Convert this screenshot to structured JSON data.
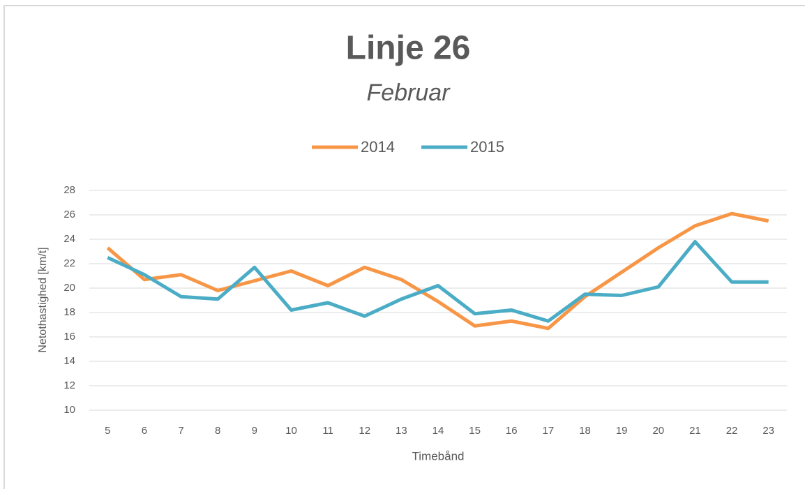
{
  "chart_data": {
    "type": "line",
    "title": "Linje 26",
    "subtitle": "Februar",
    "x_label": "Timebånd",
    "y_label": "Netothastighed [km/t]",
    "categories": [
      "5",
      "6",
      "7",
      "8",
      "9",
      "10",
      "11",
      "12",
      "13",
      "14",
      "15",
      "16",
      "17",
      "18",
      "19",
      "20",
      "21",
      "22",
      "23"
    ],
    "series": [
      {
        "name": "2014",
        "color": "#f79646",
        "values": [
          23.3,
          20.7,
          21.1,
          19.8,
          20.6,
          21.4,
          20.2,
          21.7,
          20.7,
          18.9,
          16.9,
          17.3,
          16.7,
          19.3,
          21.3,
          23.3,
          25.1,
          26.1,
          25.5
        ]
      },
      {
        "name": "2015",
        "color": "#4bacc6",
        "values": [
          22.5,
          21.1,
          19.3,
          19.1,
          21.7,
          18.2,
          18.8,
          17.7,
          19.1,
          20.2,
          17.9,
          18.2,
          17.3,
          19.5,
          19.4,
          20.1,
          23.8,
          20.5,
          20.5
        ]
      }
    ],
    "ylim": [
      10,
      28
    ],
    "yticks": [
      10,
      12,
      14,
      16,
      18,
      20,
      22,
      24,
      26,
      28
    ],
    "grid": true,
    "legend": "top"
  }
}
